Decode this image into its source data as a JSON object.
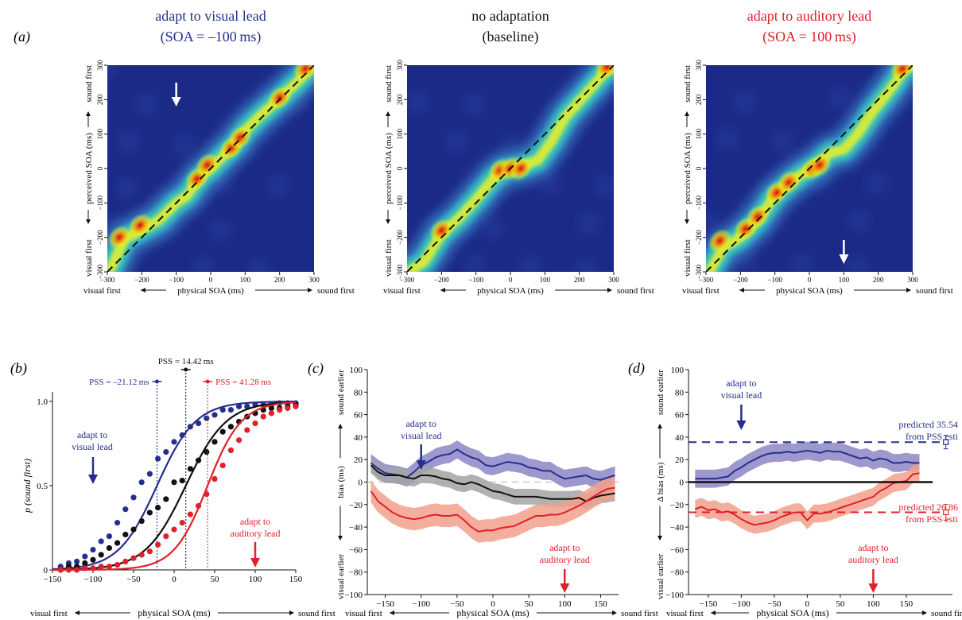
{
  "colors": {
    "blue": "#262f8e",
    "red": "#e0202a",
    "black": "#111111",
    "blue_band": "#8c86c4",
    "red_band": "#f2a08c",
    "gray_band": "#a3a3a3"
  },
  "panel_labels": {
    "a": "(a)",
    "b": "(b)",
    "c": "(c)",
    "d": "(d)"
  },
  "heatmap_titles": [
    {
      "line1": "adapt to visual lead",
      "line2": "(SOA = –100 ms)",
      "color": "#262f8e"
    },
    {
      "line1": "no adaptation",
      "line2": "(baseline)",
      "color": "#111111"
    },
    {
      "line1": "adapt to auditory lead",
      "line2": "(SOA = 100 ms)",
      "color": "#e0202a"
    }
  ],
  "heatmap_axes": {
    "xlabel": "physical SOA (ms)",
    "ylabel": "perceived SOA (ms)",
    "x_left": "visual first",
    "x_right": "sound first",
    "y_bottom": "visual first",
    "y_top": "sound first"
  },
  "bottom_axes": {
    "xlabel": "physical SOA (ms)",
    "x_left": "visual first",
    "x_right": "sound first",
    "b_ylabel": "p (sound first)",
    "c_ylabel": "bias (ms)",
    "c_y_top": "sound earlier",
    "c_y_bottom": "visual earlier",
    "d_ylabel": "Δ bias (ms)",
    "d_y_top": "sound earlier",
    "d_y_bottom": "visual earlier"
  },
  "annotations": {
    "pss_blue": "PSS = –21.12 ms",
    "pss_black": "PSS = 14.42 ms",
    "pss_red": "PSS = 41.28 ms",
    "adapt_visual_1": "adapt to",
    "adapt_visual_2": "visual lead",
    "adapt_auditory_1": "adapt to",
    "adapt_auditory_2": "auditory lead",
    "pred_blue_1": "predicted 35.54",
    "pred_blue_2": "from PSS esti",
    "pred_red_1": "predicted 26.86",
    "pred_red_2": "from PSS esti"
  },
  "chart_data": [
    {
      "panel": "a-left",
      "type": "heatmap",
      "title": "adapt to visual lead (SOA = –100 ms)",
      "xlabel": "physical SOA (ms)",
      "ylabel": "perceived SOA (ms)",
      "xlim": [
        -300,
        300
      ],
      "ylim": [
        -300,
        300
      ],
      "xticks": [
        -300,
        -200,
        -100,
        0,
        100,
        200,
        300
      ],
      "yticks": [
        -300,
        -200,
        -100,
        0,
        100,
        200,
        300
      ],
      "ridge": [
        [
          -290,
          -290
        ],
        [
          -250,
          -205
        ],
        [
          -200,
          -178
        ],
        [
          -150,
          -150
        ],
        [
          -100,
          -100
        ],
        [
          -70,
          -80
        ],
        [
          -30,
          -25
        ],
        [
          0,
          0
        ],
        [
          40,
          40
        ],
        [
          70,
          70
        ],
        [
          100,
          110
        ],
        [
          140,
          150
        ],
        [
          180,
          185
        ],
        [
          210,
          212
        ],
        [
          250,
          250
        ],
        [
          280,
          282
        ],
        [
          300,
          300
        ]
      ],
      "hot_spots": [
        [
          -265,
          -200
        ],
        [
          -205,
          -165
        ],
        [
          -40,
          -30
        ],
        [
          -10,
          10
        ],
        [
          60,
          60
        ],
        [
          85,
          90
        ],
        [
          200,
          205
        ],
        [
          275,
          290
        ]
      ],
      "adapter_arrow_soa": -100
    },
    {
      "panel": "a-middle",
      "type": "heatmap",
      "title": "no adaptation (baseline)",
      "xlabel": "physical SOA (ms)",
      "ylabel": "perceived SOA (ms)",
      "xlim": [
        -300,
        300
      ],
      "ylim": [
        -300,
        300
      ],
      "xticks": [
        -300,
        -200,
        -100,
        0,
        100,
        200,
        300
      ],
      "yticks": [
        -300,
        -200,
        -100,
        0,
        100,
        200,
        300
      ],
      "ridge": [
        [
          -295,
          -300
        ],
        [
          -250,
          -270
        ],
        [
          -200,
          -190
        ],
        [
          -150,
          -145
        ],
        [
          -100,
          -90
        ],
        [
          -50,
          -30
        ],
        [
          -20,
          -5
        ],
        [
          0,
          0
        ],
        [
          30,
          5
        ],
        [
          80,
          25
        ],
        [
          120,
          80
        ],
        [
          160,
          150
        ],
        [
          200,
          195
        ],
        [
          240,
          240
        ],
        [
          270,
          275
        ],
        [
          300,
          300
        ]
      ],
      "hot_spots": [
        [
          -200,
          -180
        ],
        [
          -30,
          -5
        ],
        [
          0,
          0
        ],
        [
          30,
          0
        ],
        [
          280,
          295
        ]
      ]
    },
    {
      "panel": "a-right",
      "type": "heatmap",
      "title": "adapt to auditory lead (SOA = 100 ms)",
      "xlabel": "physical SOA (ms)",
      "ylabel": "perceived SOA (ms)",
      "xlim": [
        -300,
        300
      ],
      "ylim": [
        -300,
        300
      ],
      "xticks": [
        -300,
        -200,
        -100,
        0,
        100,
        200,
        300
      ],
      "yticks": [
        -300,
        -200,
        -100,
        0,
        100,
        200,
        300
      ],
      "ridge": [
        [
          -290,
          -300
        ],
        [
          -250,
          -230
        ],
        [
          -200,
          -200
        ],
        [
          -150,
          -150
        ],
        [
          -100,
          -80
        ],
        [
          -60,
          -45
        ],
        [
          -20,
          -15
        ],
        [
          20,
          10
        ],
        [
          60,
          45
        ],
        [
          100,
          55
        ],
        [
          140,
          100
        ],
        [
          180,
          160
        ],
        [
          220,
          210
        ],
        [
          250,
          250
        ],
        [
          275,
          290
        ],
        [
          300,
          300
        ]
      ],
      "hot_spots": [
        [
          -260,
          -210
        ],
        [
          -185,
          -175
        ],
        [
          -150,
          -140
        ],
        [
          -95,
          -70
        ],
        [
          -60,
          -40
        ],
        [
          10,
          0
        ],
        [
          30,
          10
        ],
        [
          270,
          290
        ]
      ],
      "adapter_arrow_soa": 100
    },
    {
      "panel": "b",
      "type": "scatter",
      "xlabel": "physical SOA (ms)",
      "ylabel": "p (sound first)",
      "xlim": [
        -150,
        150
      ],
      "ylim": [
        0,
        1
      ],
      "xticks": [
        -150,
        -100,
        -50,
        0,
        50,
        100,
        150
      ],
      "yticks": [
        0,
        0.5,
        1.0
      ],
      "ytick_labels": [
        "0",
        "0.5",
        "1.0"
      ],
      "x": [
        -140,
        -130,
        -120,
        -110,
        -100,
        -90,
        -80,
        -70,
        -60,
        -50,
        -40,
        -30,
        -20,
        -10,
        0,
        10,
        20,
        30,
        40,
        50,
        60,
        70,
        80,
        90,
        100,
        110,
        120,
        130,
        140,
        150
      ],
      "series": [
        {
          "name": "adapt to visual lead",
          "color": "#262f8e",
          "pss": -21.12,
          "y": [
            0.02,
            0.04,
            0.05,
            0.08,
            0.12,
            0.17,
            0.2,
            0.28,
            0.36,
            0.43,
            0.52,
            0.57,
            0.66,
            0.7,
            0.76,
            0.8,
            0.85,
            0.87,
            0.9,
            0.92,
            0.95,
            0.95,
            0.97,
            0.97,
            0.98,
            0.98,
            0.98,
            0.99,
            0.99,
            0.99
          ]
        },
        {
          "name": "no adaptation",
          "color": "#111111",
          "pss": 14.42,
          "y": [
            0.0,
            0.02,
            0.02,
            0.04,
            0.06,
            0.09,
            0.13,
            0.16,
            0.21,
            0.24,
            0.29,
            0.34,
            0.37,
            0.42,
            0.52,
            0.53,
            0.6,
            0.65,
            0.7,
            0.76,
            0.82,
            0.85,
            0.88,
            0.91,
            0.93,
            0.95,
            0.96,
            0.96,
            0.97,
            0.98
          ]
        },
        {
          "name": "adapt to auditory lead",
          "color": "#e0202a",
          "pss": 41.28,
          "y": [
            0.0,
            0.0,
            0.0,
            0.01,
            0.01,
            0.02,
            0.02,
            0.03,
            0.05,
            0.07,
            0.09,
            0.11,
            0.15,
            0.2,
            0.24,
            0.28,
            0.33,
            0.38,
            0.45,
            0.54,
            0.62,
            0.71,
            0.77,
            0.83,
            0.87,
            0.91,
            0.93,
            0.95,
            0.96,
            0.97
          ]
        }
      ]
    },
    {
      "panel": "c",
      "type": "line",
      "xlabel": "physical SOA (ms)",
      "ylabel": "bias (ms)",
      "xlim": [
        -175,
        175
      ],
      "ylim": [
        -100,
        100
      ],
      "xticks": [
        -150,
        -100,
        -50,
        0,
        50,
        100,
        150
      ],
      "yticks": [
        -100,
        -80,
        -60,
        -40,
        -20,
        0,
        20,
        40,
        60,
        80,
        100
      ],
      "x": [
        -170,
        -160,
        -150,
        -140,
        -130,
        -120,
        -110,
        -100,
        -90,
        -80,
        -70,
        -60,
        -50,
        -40,
        -30,
        -20,
        -10,
        0,
        10,
        20,
        30,
        40,
        50,
        60,
        70,
        80,
        90,
        100,
        110,
        120,
        130,
        140,
        150,
        160,
        170
      ],
      "series": [
        {
          "name": "adapt to visual lead",
          "color": "#262f8e",
          "y": [
            17,
            12,
            8,
            7,
            6,
            4,
            9,
            15,
            18,
            22,
            24,
            25,
            29,
            25,
            22,
            20,
            15,
            14,
            16,
            18,
            17,
            16,
            13,
            12,
            10,
            10,
            6,
            3,
            4,
            5,
            6,
            3,
            2,
            4,
            6
          ],
          "band": 8
        },
        {
          "name": "no adaptation",
          "color": "#111111",
          "y": [
            15,
            9,
            6,
            6,
            6,
            4,
            3,
            6,
            6,
            5,
            3,
            2,
            -1,
            -2,
            0,
            -2,
            -5,
            -8,
            -9,
            -11,
            -13,
            -13,
            -13,
            -13,
            -14,
            -15,
            -15,
            -15,
            -15,
            -14,
            -17,
            -14,
            -12,
            -11,
            -10
          ],
          "band": 7
        },
        {
          "name": "adapt to auditory lead",
          "color": "#e0202a",
          "y": [
            -8,
            -17,
            -22,
            -27,
            -30,
            -32,
            -33,
            -32,
            -30,
            -29,
            -30,
            -30,
            -29,
            -34,
            -40,
            -44,
            -43,
            -43,
            -41,
            -40,
            -39,
            -36,
            -33,
            -30,
            -30,
            -29,
            -29,
            -27,
            -24,
            -21,
            -17,
            -13,
            -9,
            -6,
            -5
          ],
          "band": 10
        }
      ],
      "reference_line": 0
    },
    {
      "panel": "d",
      "type": "line",
      "xlabel": "physical SOA (ms)",
      "ylabel": "Δ bias (ms)",
      "xlim": [
        -180,
        220
      ],
      "ylim": [
        -100,
        100
      ],
      "xticks": [
        -150,
        -100,
        -50,
        0,
        50,
        100,
        150
      ],
      "yticks": [
        -100,
        -80,
        -60,
        -40,
        -20,
        0,
        20,
        40,
        60,
        80,
        100
      ],
      "x": [
        -170,
        -160,
        -150,
        -140,
        -130,
        -120,
        -110,
        -100,
        -90,
        -80,
        -70,
        -60,
        -50,
        -40,
        -30,
        -20,
        -10,
        0,
        10,
        20,
        30,
        40,
        50,
        60,
        70,
        80,
        90,
        100,
        110,
        120,
        130,
        140,
        150,
        160,
        170
      ],
      "series": [
        {
          "name": "adapt to visual lead",
          "color": "#262f8e",
          "y": [
            3,
            3,
            3,
            3,
            4,
            5,
            10,
            13,
            17,
            20,
            23,
            25,
            26,
            26,
            27,
            26,
            27,
            28,
            27,
            26,
            28,
            27,
            27,
            25,
            23,
            21,
            22,
            19,
            21,
            20,
            17,
            17,
            18,
            17,
            17
          ],
          "band": 8
        },
        {
          "name": "adapt to auditory lead",
          "color": "#e0202a",
          "y": [
            -24,
            -22,
            -25,
            -24,
            -27,
            -26,
            -29,
            -33,
            -36,
            -38,
            -37,
            -36,
            -34,
            -31,
            -29,
            -27,
            -27,
            -34,
            -28,
            -28,
            -27,
            -25,
            -23,
            -21,
            -19,
            -17,
            -15,
            -13,
            -8,
            -5,
            -1,
            0,
            1,
            7,
            8
          ],
          "band": 8
        }
      ],
      "reference_line": 0,
      "predicted": [
        {
          "name": "predicted 35.54",
          "value": 35.54,
          "color": "#262f8e",
          "marker_x": 210,
          "err": 6
        },
        {
          "name": "predicted 26.86",
          "value": -26.86,
          "color": "#e0202a",
          "marker_x": 210,
          "err": 7
        }
      ]
    }
  ]
}
